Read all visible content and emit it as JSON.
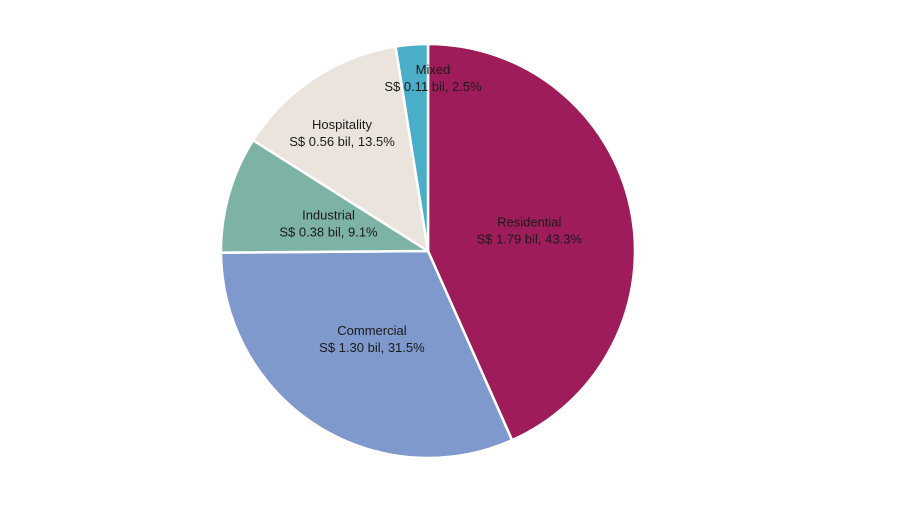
{
  "chart_data": {
    "type": "pie",
    "title": "",
    "start": "top",
    "direction": "clockwise",
    "slices": [
      {
        "name": "Residential",
        "value_label": "S$ 1.79 bil, 43.3%",
        "value": 1.79,
        "percent": 43.3,
        "color": "#9E1C5A"
      },
      {
        "name": "Commercial",
        "value_label": "S$ 1.30 bil, 31.5%",
        "value": 1.3,
        "percent": 31.5,
        "color": "#7F99CC"
      },
      {
        "name": "Industrial",
        "value_label": "S$ 0.38 bil, 9.1%",
        "value": 0.38,
        "percent": 9.1,
        "color": "#7DB3A5"
      },
      {
        "name": "Hospitality",
        "value_label": "S$ 0.56 bil, 13.5%",
        "value": 0.56,
        "percent": 13.5,
        "color": "#EAE4DC"
      },
      {
        "name": "Mixed",
        "value_label": "S$ 0.11 bil, 2.5%",
        "value": 0.11,
        "percent": 2.5,
        "color": "#4AAEC8"
      }
    ]
  }
}
